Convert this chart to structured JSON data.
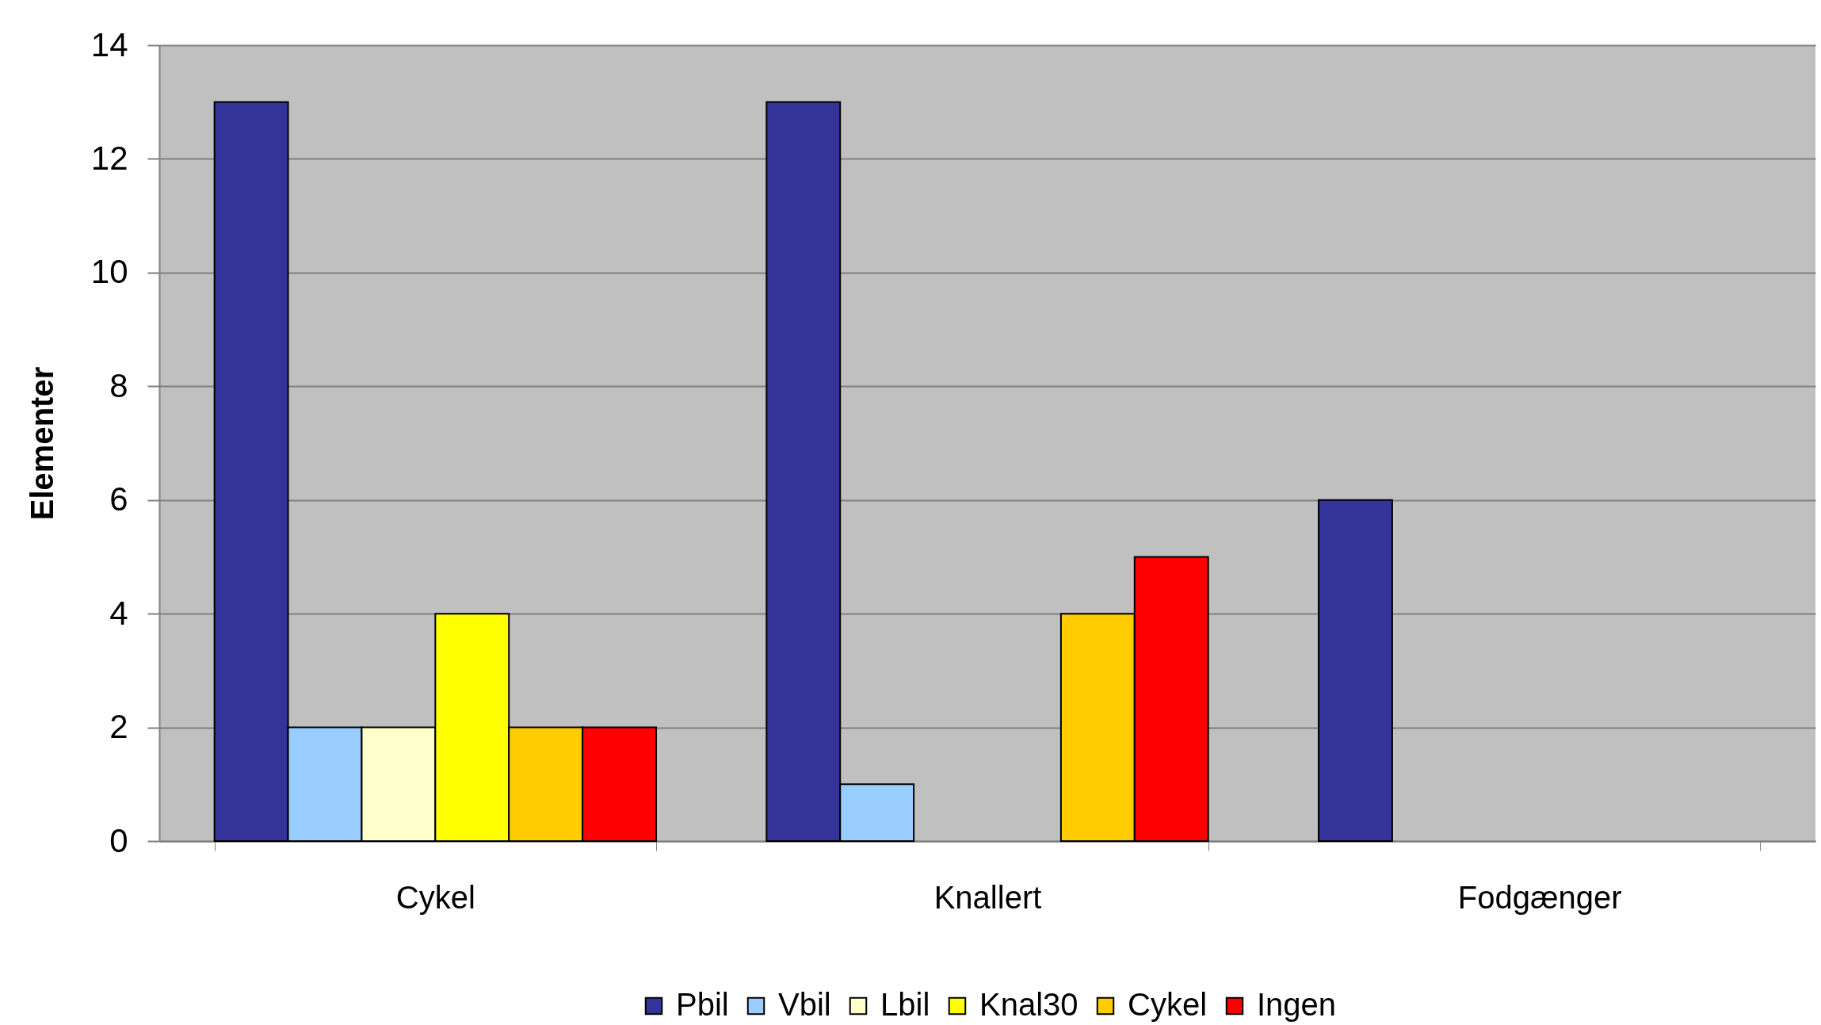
{
  "chart_data": {
    "type": "bar",
    "ylabel": "Elementer",
    "categories": [
      "Cykel",
      "Knallert",
      "Fodgænger"
    ],
    "series": [
      {
        "name": "Pbil",
        "color": "#333399",
        "values": [
          13,
          13,
          6
        ]
      },
      {
        "name": "Vbil",
        "color": "#99ccff",
        "values": [
          2,
          1,
          null
        ]
      },
      {
        "name": "Lbil",
        "color": "#ffffcc",
        "values": [
          2,
          null,
          null
        ]
      },
      {
        "name": "Knal30",
        "color": "#ffff00",
        "values": [
          4,
          null,
          null
        ]
      },
      {
        "name": "Cykel",
        "color": "#ffcc00",
        "values": [
          2,
          4,
          null
        ]
      },
      {
        "name": "Ingen",
        "color": "#ff0000",
        "values": [
          2,
          5,
          null
        ]
      }
    ],
    "ylim": [
      0,
      14
    ],
    "yticks": [
      0,
      2,
      4,
      6,
      8,
      10,
      12,
      14
    ],
    "grid": "y",
    "legend": "bottom"
  }
}
